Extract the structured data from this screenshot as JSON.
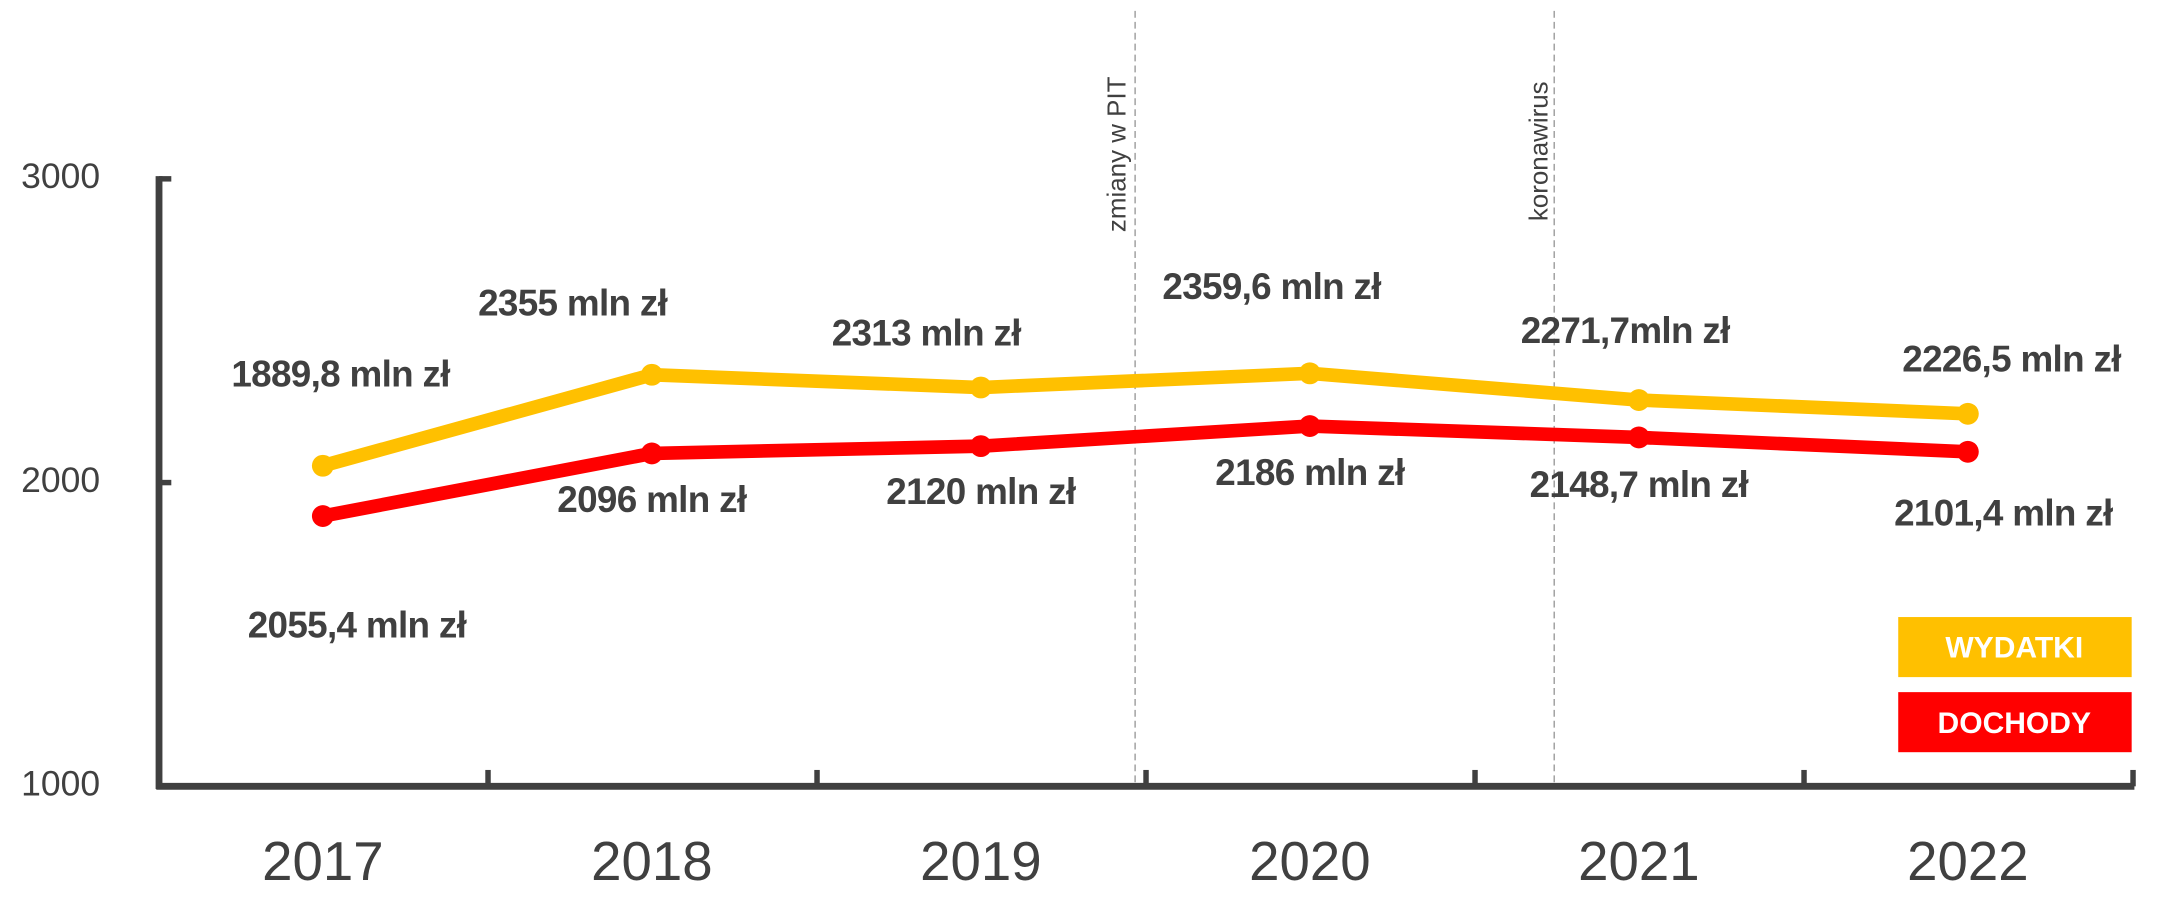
{
  "chart_data": {
    "type": "line",
    "categories": [
      "2017",
      "2018",
      "2019",
      "2020",
      "2021",
      "2022"
    ],
    "series": [
      {
        "name": "WYDATKI",
        "color": "#ffc000",
        "values": [
          2055.4,
          2355,
          2313,
          2359.6,
          2271.7,
          2226.5
        ],
        "value_labels": [
          "2055,4 mln zł",
          "2355 mln zł",
          "2313 mln zł",
          "2359,6 mln zł",
          "2271,7mln zł",
          "2226,5 mln zł"
        ]
      },
      {
        "name": "DOCHODY",
        "color": "#ff0000",
        "values": [
          1889.8,
          2096,
          2120,
          2186,
          2148.7,
          2101.4
        ],
        "value_labels": [
          "1889,8 mln zł",
          "2096 mln zł",
          "2120 mln zł",
          "2186 mln zł",
          "2148,7 mln zł",
          "2101,4 mln zł"
        ]
      }
    ],
    "ylim": [
      1000,
      3000
    ],
    "yticks": [
      1000,
      2000,
      3000
    ],
    "annotations": [
      "zmiany w PIT",
      "koronawirus"
    ]
  }
}
